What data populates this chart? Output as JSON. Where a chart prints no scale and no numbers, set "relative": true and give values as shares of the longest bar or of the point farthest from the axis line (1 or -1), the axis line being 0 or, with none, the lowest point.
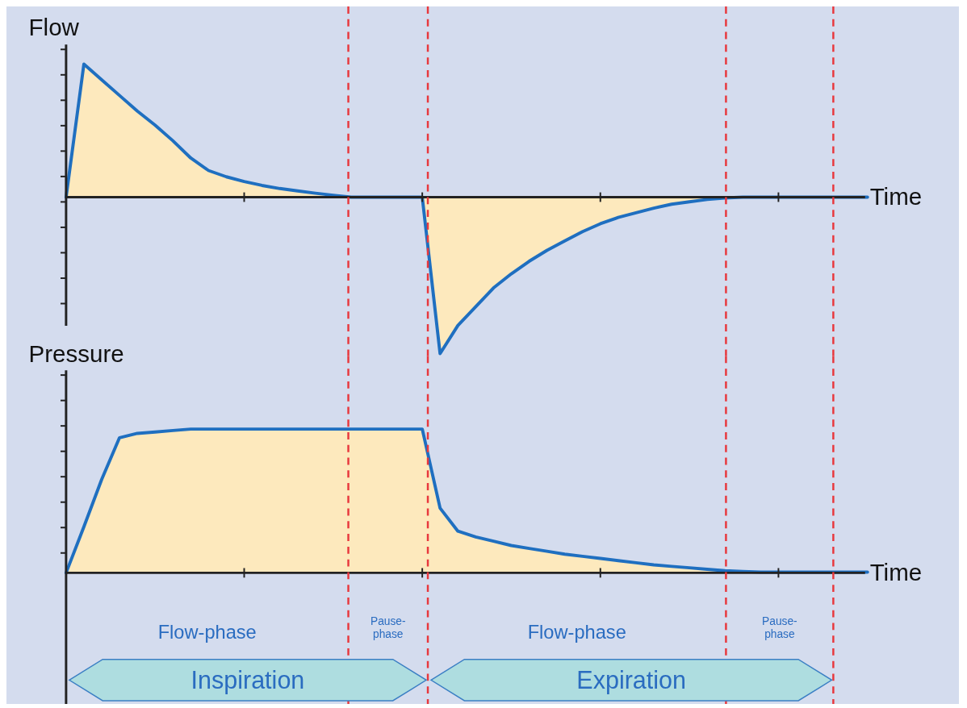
{
  "chart_data": [
    {
      "type": "area",
      "relative": true,
      "ylabel": "Flow",
      "xlabel": "Time",
      "grid": "x",
      "categories": [
        null,
        null,
        null,
        null,
        null,
        null,
        null,
        null,
        null,
        null,
        null,
        null,
        null,
        null,
        null,
        null,
        null,
        null,
        null,
        null,
        null,
        null,
        null,
        null,
        null,
        null,
        null,
        null,
        null,
        null,
        null,
        null,
        null,
        null,
        null,
        null,
        null,
        null,
        null,
        null,
        null,
        null,
        null,
        null,
        null,
        null
      ],
      "series": [
        {
          "color": "#fde9bd",
          "values": [
            0,
            0.85,
            0.75,
            0.65,
            0.55,
            0.46,
            0.36,
            0.25,
            0.17,
            0.13,
            0.1,
            0.075,
            0.055,
            0.04,
            0.025,
            0.012,
            0,
            0,
            0,
            0,
            0,
            -1,
            -0.82,
            -0.7,
            -0.58,
            -0.49,
            -0.41,
            -0.34,
            -0.28,
            -0.22,
            -0.17,
            -0.13,
            -0.1,
            -0.07,
            -0.045,
            -0.03,
            -0.015,
            -0.005,
            0,
            0,
            0,
            0,
            0,
            0,
            0,
            0
          ]
        }
      ]
    },
    {
      "type": "area",
      "relative": true,
      "ylabel": "Pressure",
      "xlabel": "Time",
      "grid": "x",
      "categories": [
        null,
        null,
        null,
        null,
        null,
        null,
        null,
        null,
        null,
        null,
        null,
        null,
        null,
        null,
        null,
        null,
        null,
        null,
        null,
        null,
        null,
        null,
        null,
        null,
        null,
        null,
        null,
        null,
        null,
        null,
        null,
        null,
        null,
        null,
        null,
        null,
        null,
        null,
        null,
        null,
        null,
        null,
        null,
        null,
        null,
        null
      ],
      "series": [
        {
          "color": "#fde9bd",
          "values": [
            0,
            0.32,
            0.65,
            0.94,
            0.97,
            0.98,
            0.99,
            1,
            1,
            1,
            1,
            1,
            1,
            1,
            1,
            1,
            1,
            1,
            1,
            1,
            1,
            0.45,
            0.29,
            0.25,
            0.22,
            0.19,
            0.17,
            0.15,
            0.13,
            0.115,
            0.1,
            0.085,
            0.07,
            0.055,
            0.045,
            0.035,
            0.025,
            0.015,
            0.01,
            0.005,
            0.005,
            0.005,
            0.005,
            0.005,
            0.005,
            0.005
          ]
        }
      ],
      "annotations": [
        "Flow-phase",
        "Pause-phase",
        "Flow-phase",
        "Pause-phase",
        "Inspiration",
        "Expiration"
      ]
    }
  ]
}
